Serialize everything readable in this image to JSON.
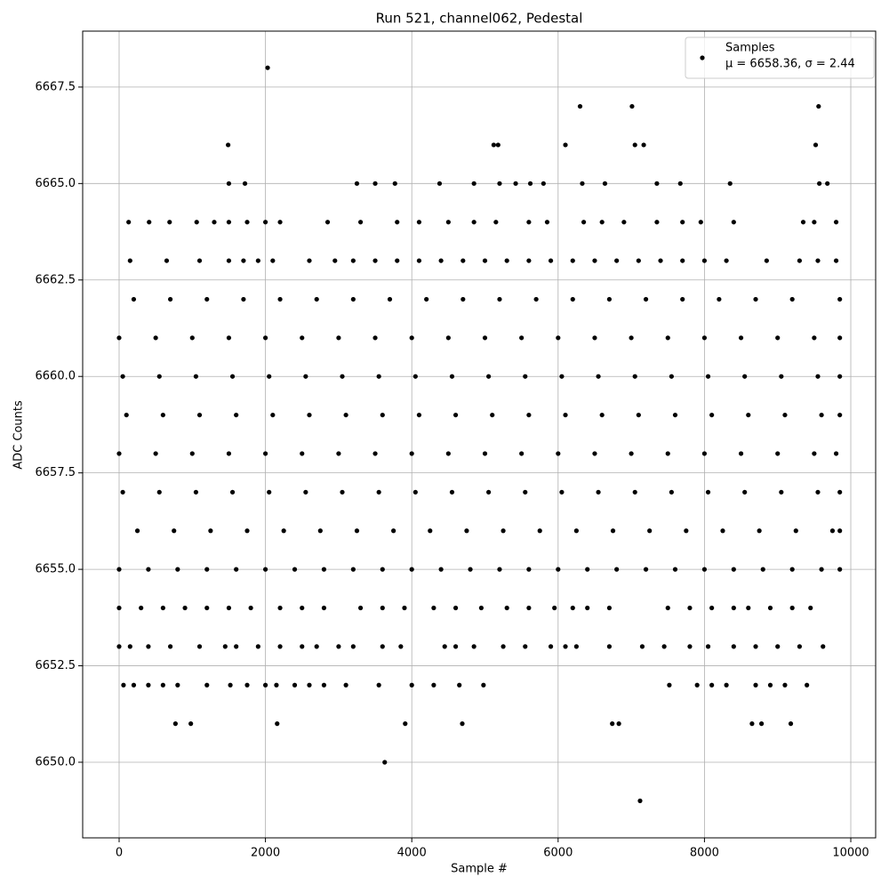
{
  "chart_data": {
    "type": "scatter",
    "title": "Run 521, channel062, Pedestal",
    "xlabel": "Sample #",
    "ylabel": "ADC Counts",
    "xlim": [
      -498,
      10340
    ],
    "ylim": [
      6648.04,
      6668.95
    ],
    "xticks": [
      0,
      2000,
      4000,
      6000,
      8000,
      10000
    ],
    "yticks": [
      {
        "value": 6650,
        "label": "6650.0"
      },
      {
        "value": 6652.5,
        "label": "6652.5"
      },
      {
        "value": 6655,
        "label": "6655.0"
      },
      {
        "value": 6657.5,
        "label": "6657.5"
      },
      {
        "value": 6660,
        "label": "6660.0"
      },
      {
        "value": 6662.5,
        "label": "6662.5"
      },
      {
        "value": 6665,
        "label": "6665.0"
      },
      {
        "value": 6667.5,
        "label": "6667.5"
      }
    ],
    "grid": true,
    "legend": "upper right",
    "annotation": "μ = 6658.36, σ = 2.44",
    "series": [
      {
        "name": "Samples",
        "color": "#000000",
        "x": [
          2030,
          6300,
          7010,
          9560,
          1490,
          5120,
          5180,
          6100,
          7050,
          7170,
          9520,
          1500,
          1720,
          3250,
          3500,
          3770,
          4380,
          4850,
          5200,
          5420,
          5620,
          5800,
          6330,
          6640,
          7350,
          7670,
          8350,
          9570,
          9680,
          130,
          410,
          690,
          1060,
          1300,
          1500,
          1750,
          2000,
          2200,
          2850,
          3300,
          3800,
          4100,
          4500,
          4850,
          5150,
          5600,
          5850,
          6350,
          6600,
          6900,
          7350,
          7700,
          7950,
          8400,
          9350,
          9500,
          9800,
          150,
          650,
          1100,
          1500,
          1700,
          1900,
          2100,
          2600,
          2950,
          3200,
          3500,
          3800,
          4100,
          4400,
          4700,
          5000,
          5300,
          5600,
          5900,
          6200,
          6500,
          6800,
          7100,
          7400,
          7700,
          8000,
          8300,
          8850,
          9300,
          9550,
          9800,
          200,
          700,
          1200,
          1700,
          2200,
          2700,
          3200,
          3700,
          4200,
          4700,
          5200,
          5700,
          6200,
          6700,
          7200,
          7700,
          8200,
          8700,
          9200,
          9850,
          0,
          500,
          1000,
          1500,
          2000,
          2500,
          3000,
          3500,
          4000,
          4500,
          5000,
          5500,
          6000,
          6500,
          7000,
          7500,
          8000,
          8500,
          9000,
          9500,
          9850,
          50,
          550,
          1050,
          1550,
          2050,
          2550,
          3050,
          3550,
          4050,
          4550,
          5050,
          5550,
          6050,
          6550,
          7050,
          7550,
          8050,
          8550,
          9050,
          9550,
          9850,
          100,
          600,
          1100,
          1600,
          2100,
          2600,
          3100,
          3600,
          4100,
          4600,
          5100,
          5600,
          6100,
          6600,
          7100,
          7600,
          8100,
          8600,
          9100,
          9600,
          9850,
          0,
          500,
          1000,
          1500,
          2000,
          2500,
          3000,
          3500,
          4000,
          4500,
          5000,
          5500,
          6000,
          6500,
          7000,
          7500,
          8000,
          8500,
          9000,
          9500,
          9800,
          50,
          550,
          1050,
          1550,
          2050,
          2550,
          3050,
          3550,
          4050,
          4550,
          5050,
          5550,
          6050,
          6550,
          7050,
          7550,
          8050,
          8550,
          9050,
          9550,
          9850,
          250,
          750,
          1250,
          1750,
          2250,
          2750,
          3250,
          3750,
          4250,
          4750,
          5250,
          5750,
          6250,
          6750,
          7250,
          7750,
          8250,
          8750,
          9250,
          9750,
          9850,
          0,
          400,
          800,
          1200,
          1600,
          2000,
          2400,
          2800,
          3200,
          3600,
          4000,
          4400,
          4800,
          5200,
          5600,
          6000,
          6400,
          6800,
          7200,
          7600,
          8000,
          8400,
          8800,
          9200,
          9600,
          9850,
          0,
          300,
          600,
          900,
          1200,
          1500,
          1800,
          2200,
          2500,
          2800,
          3300,
          3600,
          3900,
          4300,
          4600,
          4950,
          5300,
          5600,
          5950,
          6200,
          6400,
          6700,
          7500,
          7800,
          8100,
          8400,
          8600,
          8900,
          9200,
          9450,
          0,
          150,
          400,
          700,
          1100,
          1450,
          1600,
          1900,
          2200,
          2500,
          2700,
          3000,
          3200,
          3600,
          3850,
          4450,
          4600,
          4850,
          5250,
          5550,
          5900,
          6100,
          6250,
          6700,
          7150,
          7450,
          7800,
          8050,
          8400,
          8700,
          9000,
          9300,
          9620,
          60,
          200,
          400,
          600,
          800,
          1200,
          1520,
          1750,
          2000,
          2150,
          2400,
          2600,
          2800,
          3100,
          3550,
          4000,
          4300,
          4650,
          4980,
          7520,
          7900,
          8100,
          8300,
          8700,
          8900,
          9100,
          9400,
          770,
          980,
          2160,
          3910,
          4690,
          6740,
          6830,
          8650,
          8780,
          9180,
          3630,
          7120
        ],
        "values": [
          6668,
          6667,
          6667,
          6667,
          6666,
          6666,
          6666,
          6666,
          6666,
          6666,
          6666,
          6665,
          6665,
          6665,
          6665,
          6665,
          6665,
          6665,
          6665,
          6665,
          6665,
          6665,
          6665,
          6665,
          6665,
          6665,
          6665,
          6665,
          6665,
          6664,
          6664,
          6664,
          6664,
          6664,
          6664,
          6664,
          6664,
          6664,
          6664,
          6664,
          6664,
          6664,
          6664,
          6664,
          6664,
          6664,
          6664,
          6664,
          6664,
          6664,
          6664,
          6664,
          6664,
          6664,
          6664,
          6664,
          6664,
          6663,
          6663,
          6663,
          6663,
          6663,
          6663,
          6663,
          6663,
          6663,
          6663,
          6663,
          6663,
          6663,
          6663,
          6663,
          6663,
          6663,
          6663,
          6663,
          6663,
          6663,
          6663,
          6663,
          6663,
          6663,
          6663,
          6663,
          6663,
          6663,
          6663,
          6663,
          6662,
          6662,
          6662,
          6662,
          6662,
          6662,
          6662,
          6662,
          6662,
          6662,
          6662,
          6662,
          6662,
          6662,
          6662,
          6662,
          6662,
          6662,
          6662,
          6662,
          6661,
          6661,
          6661,
          6661,
          6661,
          6661,
          6661,
          6661,
          6661,
          6661,
          6661,
          6661,
          6661,
          6661,
          6661,
          6661,
          6661,
          6661,
          6661,
          6661,
          6661,
          6660,
          6660,
          6660,
          6660,
          6660,
          6660,
          6660,
          6660,
          6660,
          6660,
          6660,
          6660,
          6660,
          6660,
          6660,
          6660,
          6660,
          6660,
          6660,
          6660,
          6660,
          6659,
          6659,
          6659,
          6659,
          6659,
          6659,
          6659,
          6659,
          6659,
          6659,
          6659,
          6659,
          6659,
          6659,
          6659,
          6659,
          6659,
          6659,
          6659,
          6659,
          6659,
          6658,
          6658,
          6658,
          6658,
          6658,
          6658,
          6658,
          6658,
          6658,
          6658,
          6658,
          6658,
          6658,
          6658,
          6658,
          6658,
          6658,
          6658,
          6658,
          6658,
          6658,
          6657,
          6657,
          6657,
          6657,
          6657,
          6657,
          6657,
          6657,
          6657,
          6657,
          6657,
          6657,
          6657,
          6657,
          6657,
          6657,
          6657,
          6657,
          6657,
          6657,
          6657,
          6656,
          6656,
          6656,
          6656,
          6656,
          6656,
          6656,
          6656,
          6656,
          6656,
          6656,
          6656,
          6656,
          6656,
          6656,
          6656,
          6656,
          6656,
          6656,
          6656,
          6656,
          6655,
          6655,
          6655,
          6655,
          6655,
          6655,
          6655,
          6655,
          6655,
          6655,
          6655,
          6655,
          6655,
          6655,
          6655,
          6655,
          6655,
          6655,
          6655,
          6655,
          6655,
          6655,
          6655,
          6655,
          6655,
          6655,
          6654,
          6654,
          6654,
          6654,
          6654,
          6654,
          6654,
          6654,
          6654,
          6654,
          6654,
          6654,
          6654,
          6654,
          6654,
          6654,
          6654,
          6654,
          6654,
          6654,
          6654,
          6654,
          6654,
          6654,
          6654,
          6654,
          6654,
          6654,
          6654,
          6654,
          6653,
          6653,
          6653,
          6653,
          6653,
          6653,
          6653,
          6653,
          6653,
          6653,
          6653,
          6653,
          6653,
          6653,
          6653,
          6653,
          6653,
          6653,
          6653,
          6653,
          6653,
          6653,
          6653,
          6653,
          6653,
          6653,
          6653,
          6653,
          6653,
          6653,
          6653,
          6653,
          6653,
          6652,
          6652,
          6652,
          6652,
          6652,
          6652,
          6652,
          6652,
          6652,
          6652,
          6652,
          6652,
          6652,
          6652,
          6652,
          6652,
          6652,
          6652,
          6652,
          6652,
          6652,
          6652,
          6652,
          6652,
          6652,
          6652,
          6652,
          6651,
          6651,
          6651,
          6651,
          6651,
          6651,
          6651,
          6651,
          6651,
          6651,
          6650,
          6649
        ]
      }
    ]
  }
}
